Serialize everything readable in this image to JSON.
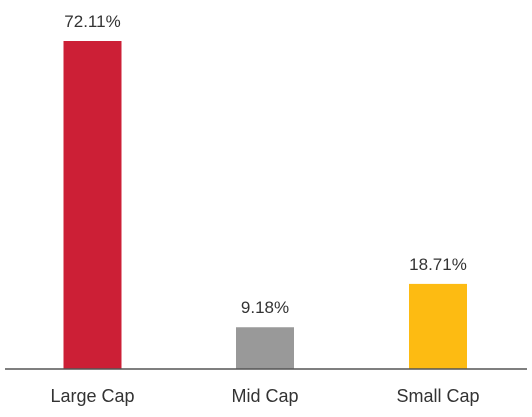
{
  "chart_data": {
    "type": "bar",
    "title": "",
    "xlabel": "",
    "ylabel": "",
    "categories": [
      "Large Cap",
      "Mid Cap",
      "Small Cap"
    ],
    "values": [
      72.11,
      9.18,
      18.71
    ],
    "value_labels": [
      "72.11%",
      "9.18%",
      "18.71%"
    ],
    "colors": [
      "#cc1f36",
      "#999999",
      "#fdbb12"
    ],
    "ylim": [
      0,
      72.11
    ],
    "grid": false,
    "legend": "none"
  }
}
